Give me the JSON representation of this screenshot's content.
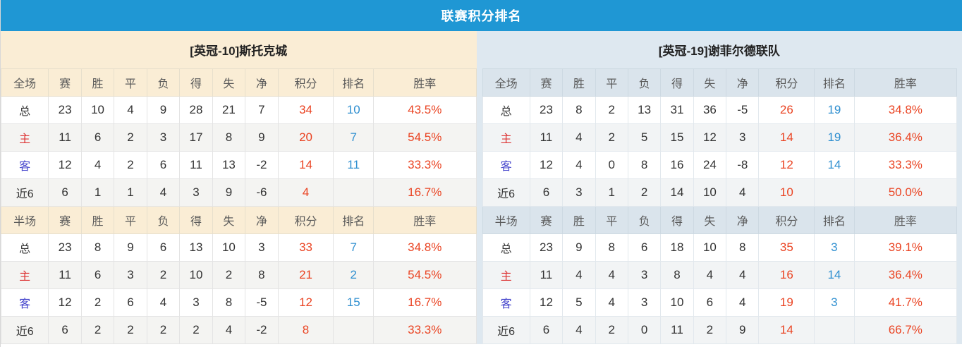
{
  "title": "联赛积分排名",
  "colors": {
    "accent_blue": "#1F97D4",
    "points_red": "#EA4423",
    "rank_blue": "#2F8FD0",
    "home_red": "#DD3333",
    "away_blue": "#4444CC",
    "left_header_bg": "#FAEDD5",
    "right_band_bg": "#DEE8F0"
  },
  "section_labels": {
    "full": "全场",
    "half": "半场"
  },
  "columns": [
    "赛",
    "胜",
    "平",
    "负",
    "得",
    "失",
    "净",
    "积分",
    "排名",
    "胜率"
  ],
  "teams": [
    {
      "name": "[英冠-10]斯托克城",
      "full_rows": [
        {
          "label": "总",
          "type": "total",
          "values": [
            23,
            10,
            4,
            9,
            28,
            21,
            7
          ],
          "points": "34",
          "rank": "10",
          "rate": "43.5%"
        },
        {
          "label": "主",
          "type": "home",
          "values": [
            11,
            6,
            2,
            3,
            17,
            8,
            9
          ],
          "points": "20",
          "rank": "7",
          "rate": "54.5%"
        },
        {
          "label": "客",
          "type": "away",
          "values": [
            12,
            4,
            2,
            6,
            11,
            13,
            -2
          ],
          "points": "14",
          "rank": "11",
          "rate": "33.3%"
        },
        {
          "label": "近6",
          "type": "recent",
          "values": [
            6,
            1,
            1,
            4,
            3,
            9,
            -6
          ],
          "points": "4",
          "rank": "",
          "rate": "16.7%"
        }
      ],
      "half_rows": [
        {
          "label": "总",
          "type": "total",
          "values": [
            23,
            8,
            9,
            6,
            13,
            10,
            3
          ],
          "points": "33",
          "rank": "7",
          "rate": "34.8%"
        },
        {
          "label": "主",
          "type": "home",
          "values": [
            11,
            6,
            3,
            2,
            10,
            2,
            8
          ],
          "points": "21",
          "rank": "2",
          "rate": "54.5%"
        },
        {
          "label": "客",
          "type": "away",
          "values": [
            12,
            2,
            6,
            4,
            3,
            8,
            -5
          ],
          "points": "12",
          "rank": "15",
          "rate": "16.7%"
        },
        {
          "label": "近6",
          "type": "recent",
          "values": [
            6,
            2,
            2,
            2,
            2,
            4,
            -2
          ],
          "points": "8",
          "rank": "",
          "rate": "33.3%"
        }
      ]
    },
    {
      "name": "[英冠-19]谢菲尔德联队",
      "full_rows": [
        {
          "label": "总",
          "type": "total",
          "values": [
            23,
            8,
            2,
            13,
            31,
            36,
            -5
          ],
          "points": "26",
          "rank": "19",
          "rate": "34.8%"
        },
        {
          "label": "主",
          "type": "home",
          "values": [
            11,
            4,
            2,
            5,
            15,
            12,
            3
          ],
          "points": "14",
          "rank": "19",
          "rate": "36.4%"
        },
        {
          "label": "客",
          "type": "away",
          "values": [
            12,
            4,
            0,
            8,
            16,
            24,
            -8
          ],
          "points": "12",
          "rank": "14",
          "rate": "33.3%"
        },
        {
          "label": "近6",
          "type": "recent",
          "values": [
            6,
            3,
            1,
            2,
            14,
            10,
            4
          ],
          "points": "10",
          "rank": "",
          "rate": "50.0%"
        }
      ],
      "half_rows": [
        {
          "label": "总",
          "type": "total",
          "values": [
            23,
            9,
            8,
            6,
            18,
            10,
            8
          ],
          "points": "35",
          "rank": "3",
          "rate": "39.1%"
        },
        {
          "label": "主",
          "type": "home",
          "values": [
            11,
            4,
            4,
            3,
            8,
            4,
            4
          ],
          "points": "16",
          "rank": "14",
          "rate": "36.4%"
        },
        {
          "label": "客",
          "type": "away",
          "values": [
            12,
            5,
            4,
            3,
            10,
            6,
            4
          ],
          "points": "19",
          "rank": "3",
          "rate": "41.7%"
        },
        {
          "label": "近6",
          "type": "recent",
          "values": [
            6,
            4,
            2,
            0,
            11,
            2,
            9
          ],
          "points": "14",
          "rank": "",
          "rate": "66.7%"
        }
      ]
    }
  ]
}
